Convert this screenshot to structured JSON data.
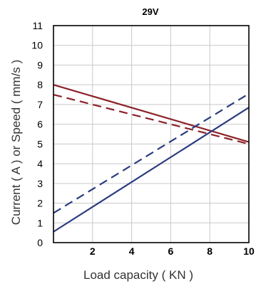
{
  "chart_data": {
    "type": "line",
    "title": "29V",
    "xlabel": "Load capacity ( KN )",
    "ylabel": "Current ( A ) or Speed ( mm/s )",
    "xlim": [
      0,
      10
    ],
    "ylim": [
      0,
      11
    ],
    "x_ticks": [
      "2",
      "4",
      "6",
      "8",
      "10"
    ],
    "y_ticks": [
      "0",
      "1",
      "2",
      "3",
      "4",
      "5",
      "6",
      "7",
      "8",
      "9",
      "10",
      "11"
    ],
    "grid": true,
    "series": [
      {
        "color": "#8b2229",
        "style": "solid",
        "x": [
          0,
          10
        ],
        "y": [
          8.0,
          5.1
        ]
      },
      {
        "color": "#8b2229",
        "style": "dashed",
        "x": [
          0,
          10
        ],
        "y": [
          7.5,
          5.0
        ]
      },
      {
        "color": "#2b3c7e",
        "style": "solid",
        "x": [
          0,
          10
        ],
        "y": [
          0.55,
          6.85
        ]
      },
      {
        "color": "#2b3c7e",
        "style": "dashed",
        "x": [
          0,
          10
        ],
        "y": [
          1.5,
          7.55
        ]
      }
    ]
  }
}
